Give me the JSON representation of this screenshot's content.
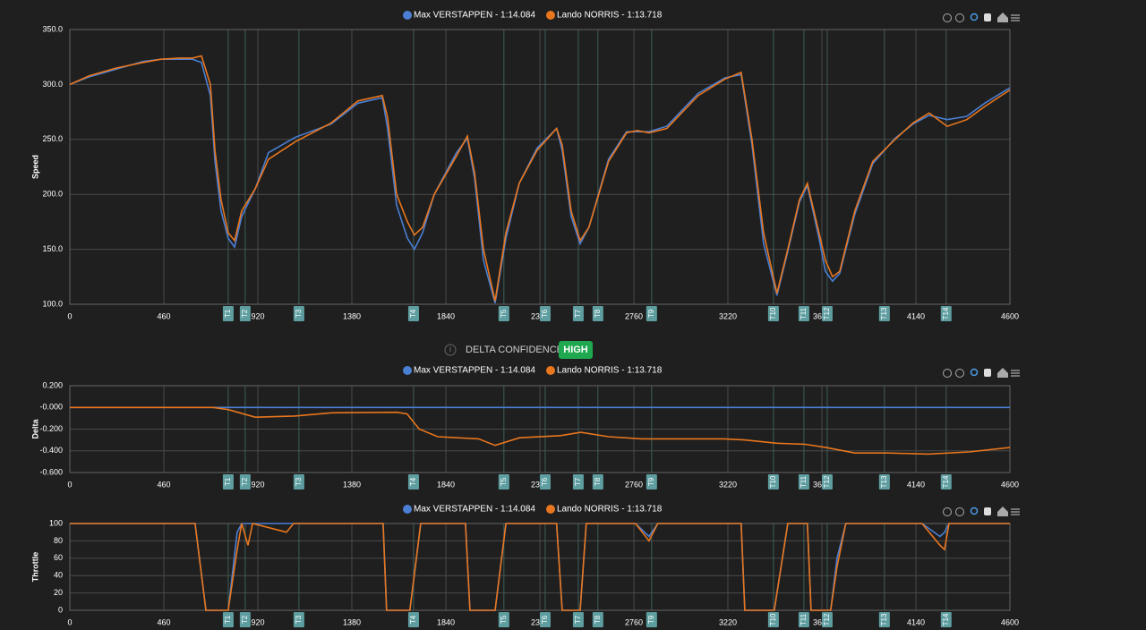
{
  "turns": [
    {
      "label": "T1",
      "x": 775
    },
    {
      "label": "T2",
      "x": 858
    },
    {
      "label": "T3",
      "x": 1121
    },
    {
      "label": "T4",
      "x": 1682
    },
    {
      "label": "T5",
      "x": 2124
    },
    {
      "label": "T6",
      "x": 2326
    },
    {
      "label": "T7",
      "x": 2488
    },
    {
      "label": "T8",
      "x": 2584
    },
    {
      "label": "T9",
      "x": 2847
    },
    {
      "label": "T10",
      "x": 3443
    },
    {
      "label": "T11",
      "x": 3592
    },
    {
      "label": "T12",
      "x": 3706
    },
    {
      "label": "T13",
      "x": 3986
    },
    {
      "label": "T14",
      "x": 4288
    }
  ],
  "delta_confidence": {
    "label": "DELTA CONFIDENCE:",
    "value": "HIGH"
  },
  "chart_data": [
    {
      "type": "line",
      "ylabel": "Speed",
      "xlim": [
        0,
        4600
      ],
      "xticks": [
        0,
        460,
        920,
        1380,
        1840,
        2300,
        2760,
        3220,
        3680,
        4140,
        4600
      ],
      "ylim": [
        100,
        350
      ],
      "yticks": [
        {
          "value": 100,
          "label": "100.0"
        },
        {
          "value": 150,
          "label": "150.0"
        },
        {
          "value": 200,
          "label": "200.0"
        },
        {
          "value": 250,
          "label": "250.0"
        },
        {
          "value": 300,
          "label": "300.0"
        },
        {
          "value": 350,
          "label": "350.0"
        }
      ],
      "grid": true,
      "x": [
        0,
        96,
        228,
        359,
        447,
        534,
        600,
        644,
        688,
        710,
        740,
        775,
        806,
        841,
        907,
        972,
        1104,
        1279,
        1410,
        1529,
        1555,
        1599,
        1652,
        1686,
        1726,
        1783,
        1892,
        1945,
        1980,
        2024,
        2081,
        2134,
        2199,
        2286,
        2382,
        2409,
        2453,
        2497,
        2540,
        2636,
        2724,
        2777,
        2834,
        2921,
        3075,
        3206,
        3285,
        3338,
        3395,
        3460,
        3513,
        3570,
        3609,
        3666,
        3697,
        3732,
        3767,
        3841,
        3929,
        4038,
        4126,
        4205,
        4293,
        4389,
        4477,
        4600
      ],
      "series": [
        {
          "name": "Max VERSTAPPEN - 1:14.084",
          "color": "#4a7fd4",
          "values": [
            300,
            307,
            314,
            321,
            323,
            323,
            323,
            320,
            290,
            230,
            185,
            160,
            152,
            180,
            205,
            238,
            252,
            264,
            283,
            288,
            260,
            190,
            160,
            150,
            165,
            200,
            238,
            251,
            215,
            140,
            101,
            160,
            210,
            242,
            260,
            240,
            180,
            155,
            170,
            232,
            257,
            257,
            257,
            262,
            292,
            306,
            309,
            245,
            155,
            108,
            148,
            193,
            208,
            160,
            130,
            121,
            128,
            182,
            228,
            251,
            264,
            272,
            268,
            271,
            283,
            297
          ]
        },
        {
          "name": "Lando NORRIS - 1:13.718",
          "color": "#e8761e",
          "values": [
            300,
            308,
            315,
            320,
            323,
            324,
            324,
            326,
            300,
            240,
            195,
            165,
            158,
            185,
            205,
            232,
            248,
            265,
            285,
            290,
            270,
            200,
            175,
            163,
            170,
            200,
            235,
            253,
            220,
            150,
            103,
            165,
            210,
            240,
            260,
            245,
            185,
            158,
            170,
            230,
            256,
            258,
            256,
            260,
            290,
            305,
            311,
            250,
            165,
            110,
            150,
            195,
            210,
            165,
            140,
            125,
            130,
            185,
            230,
            250,
            265,
            274,
            262,
            268,
            280,
            295
          ]
        }
      ]
    },
    {
      "type": "line",
      "ylabel": "Delta",
      "xlim": [
        0,
        4600
      ],
      "xticks": [
        0,
        460,
        920,
        1380,
        1840,
        2300,
        2760,
        3220,
        3680,
        4140,
        4600
      ],
      "ylim": [
        -0.6,
        0.2
      ],
      "yticks": [
        {
          "value": 0.2,
          "label": "0.200"
        },
        {
          "value": 0,
          "label": "-0.000"
        },
        {
          "value": -0.2,
          "label": "-0.200"
        },
        {
          "value": -0.4,
          "label": "-0.400"
        },
        {
          "value": -0.6,
          "label": "-0.600"
        }
      ],
      "grid": true,
      "x": [
        0,
        700,
        775,
        907,
        1100,
        1280,
        1600,
        1650,
        1710,
        1800,
        2000,
        2081,
        2200,
        2400,
        2500,
        2636,
        2800,
        3200,
        3300,
        3460,
        3600,
        3700,
        3841,
        4000,
        4200,
        4400,
        4600
      ],
      "series": [
        {
          "name": "Max VERSTAPPEN - 1:14.084",
          "color": "#4a7fd4",
          "values": [
            0,
            0,
            0,
            0,
            0,
            0,
            0,
            0,
            0,
            0,
            0,
            0,
            0,
            0,
            0,
            0,
            0,
            0,
            0,
            0,
            0,
            0,
            0,
            0,
            0,
            0,
            0
          ]
        },
        {
          "name": "Lando NORRIS - 1:13.718",
          "color": "#e8761e",
          "values": [
            0,
            0,
            -0.02,
            -0.09,
            -0.08,
            -0.05,
            -0.045,
            -0.06,
            -0.2,
            -0.27,
            -0.29,
            -0.35,
            -0.28,
            -0.26,
            -0.23,
            -0.27,
            -0.29,
            -0.29,
            -0.3,
            -0.33,
            -0.34,
            -0.37,
            -0.42,
            -0.42,
            -0.43,
            -0.41,
            -0.37
          ]
        }
      ]
    },
    {
      "type": "line",
      "ylabel": "Throttle",
      "xlim": [
        0,
        4600
      ],
      "xticks": [
        0,
        460,
        920,
        1380,
        1840,
        2300,
        2760,
        3220,
        3680,
        4140,
        4600
      ],
      "ylim": [
        0,
        100
      ],
      "yticks": [
        0,
        20,
        40,
        60,
        80,
        100
      ],
      "grid": true,
      "x": [
        0,
        613,
        666,
        775,
        819,
        841,
        872,
        894,
        1060,
        1095,
        1533,
        1550,
        1664,
        1717,
        1936,
        1958,
        2081,
        2134,
        2382,
        2409,
        2497,
        2527,
        2768,
        2834,
        2877,
        3285,
        3303,
        3447,
        3513,
        3609,
        3627,
        3723,
        3754,
        3797,
        4170,
        4258,
        4280,
        4302,
        4600
      ],
      "series": [
        {
          "name": "Max VERSTAPPEN - 1:14.084",
          "color": "#4a7fd4",
          "values": [
            100,
            100,
            0,
            0,
            90,
            100,
            100,
            100,
            100,
            100,
            100,
            0,
            0,
            100,
            100,
            0,
            0,
            100,
            100,
            0,
            0,
            100,
            100,
            85,
            100,
            100,
            0,
            0,
            100,
            100,
            0,
            0,
            60,
            100,
            100,
            85,
            90,
            100,
            100
          ]
        },
        {
          "name": "Lando NORRIS - 1:13.718",
          "color": "#e8761e",
          "values": [
            100,
            100,
            0,
            0,
            70,
            100,
            75,
            100,
            90,
            100,
            100,
            0,
            0,
            100,
            100,
            0,
            0,
            100,
            100,
            0,
            0,
            100,
            100,
            80,
            100,
            100,
            0,
            0,
            100,
            100,
            0,
            0,
            50,
            100,
            100,
            75,
            70,
            100,
            100
          ]
        }
      ]
    }
  ]
}
